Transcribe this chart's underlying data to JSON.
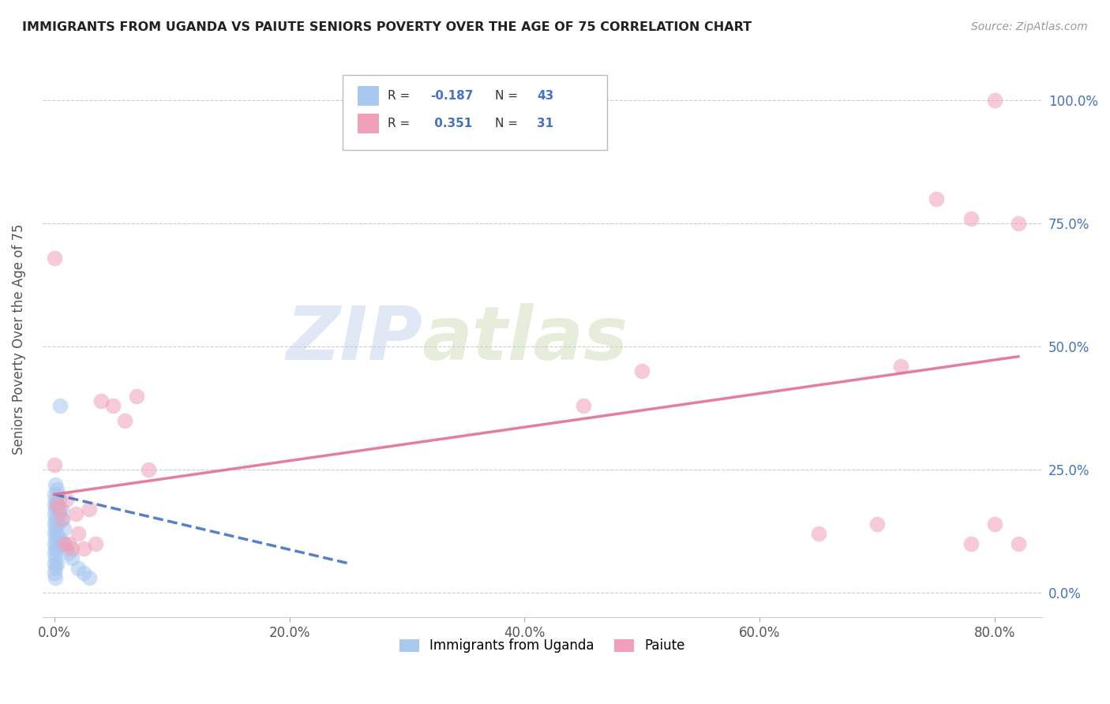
{
  "title": "IMMIGRANTS FROM UGANDA VS PAIUTE SENIORS POVERTY OVER THE AGE OF 75 CORRELATION CHART",
  "source": "Source: ZipAtlas.com",
  "ylabel_label": "Seniors Poverty Over the Age of 75",
  "legend_label1": "Immigrants from Uganda",
  "legend_label2": "Paiute",
  "r1": "-0.187",
  "n1": "43",
  "r2": "0.351",
  "n2": "31",
  "color_blue": "#a8c8f0",
  "color_pink": "#f0a0b8",
  "color_line_blue": "#4472c4",
  "color_line_pink": "#e07090",
  "watermark_zip": "ZIP",
  "watermark_atlas": "atlas",
  "blue_points_x": [
    0.0,
    0.0,
    0.0,
    0.0,
    0.0,
    0.0,
    0.0,
    0.0,
    0.0,
    0.001,
    0.001,
    0.001,
    0.001,
    0.001,
    0.001,
    0.001,
    0.001,
    0.001,
    0.001,
    0.002,
    0.002,
    0.002,
    0.002,
    0.002,
    0.002,
    0.003,
    0.003,
    0.003,
    0.003,
    0.004,
    0.004,
    0.005,
    0.005,
    0.006,
    0.007,
    0.008,
    0.009,
    0.01,
    0.012,
    0.015,
    0.02,
    0.025,
    0.03
  ],
  "blue_points_y": [
    0.2,
    0.18,
    0.16,
    0.14,
    0.12,
    0.1,
    0.08,
    0.06,
    0.04,
    0.22,
    0.19,
    0.17,
    0.15,
    0.13,
    0.11,
    0.09,
    0.07,
    0.05,
    0.03,
    0.21,
    0.18,
    0.15,
    0.12,
    0.09,
    0.06,
    0.2,
    0.17,
    0.14,
    0.11,
    0.19,
    0.16,
    0.38,
    0.11,
    0.17,
    0.15,
    0.13,
    0.1,
    0.09,
    0.08,
    0.07,
    0.05,
    0.04,
    0.03
  ],
  "pink_points_x": [
    0.0,
    0.0,
    0.002,
    0.004,
    0.006,
    0.008,
    0.01,
    0.012,
    0.015,
    0.018,
    0.02,
    0.025,
    0.03,
    0.035,
    0.04,
    0.05,
    0.06,
    0.07,
    0.08,
    0.65,
    0.7,
    0.72,
    0.75,
    0.78,
    0.78,
    0.8,
    0.8,
    0.82,
    0.82,
    0.45,
    0.5
  ],
  "pink_points_y": [
    0.68,
    0.26,
    0.18,
    0.17,
    0.15,
    0.1,
    0.19,
    0.1,
    0.09,
    0.16,
    0.12,
    0.09,
    0.17,
    0.1,
    0.39,
    0.38,
    0.35,
    0.4,
    0.25,
    0.12,
    0.14,
    0.46,
    0.8,
    0.76,
    0.1,
    0.14,
    1.0,
    0.75,
    0.1,
    0.38,
    0.45
  ],
  "blue_line_x": [
    0.0,
    0.25
  ],
  "blue_line_y": [
    0.2,
    0.06
  ],
  "pink_line_x": [
    0.0,
    0.82
  ],
  "pink_line_y": [
    0.2,
    0.48
  ],
  "xlim": [
    -0.01,
    0.84
  ],
  "ylim": [
    -0.05,
    1.08
  ],
  "xticks": [
    0.0,
    0.2,
    0.4,
    0.6,
    0.8
  ],
  "xtick_labels": [
    "0.0%",
    "20.0%",
    "40.0%",
    "60.0%",
    "80.0%"
  ],
  "yticks": [
    0.0,
    0.25,
    0.5,
    0.75,
    1.0
  ],
  "ytick_labels": [
    "0.0%",
    "25.0%",
    "50.0%",
    "75.0%",
    "100.0%"
  ]
}
